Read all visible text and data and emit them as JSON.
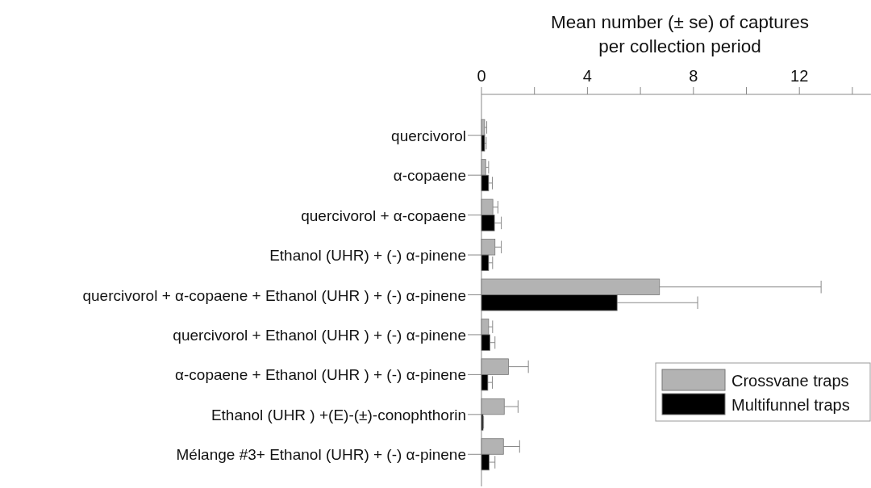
{
  "chart_data": {
    "type": "bar",
    "orientation": "horizontal",
    "xlabel": "Mean number (± se) of captures\nper collection period",
    "categories": [
      "quercivorol",
      "α-copaene",
      "quercivorol + α-copaene",
      "Ethanol (UHR) + (-) α-pinene",
      "quercivorol + α-copaene + Ethanol (UHR ) + (-) α-pinene",
      "quercivorol + Ethanol (UHR ) + (-) α-pinene",
      "α-copaene + Ethanol (UHR ) + (-) α-pinene",
      "Ethanol (UHR ) +(E)-(±)-conophthorin",
      "Mélange #3+ Ethanol (UHR) + (-) α-pinene"
    ],
    "series": [
      {
        "name": "Crossvane traps",
        "color": "#b3b3b3",
        "values": [
          0.12,
          0.16,
          0.43,
          0.51,
          6.72,
          0.27,
          1.02,
          0.86,
          0.83
        ],
        "errors": [
          [
            0.12,
            0.2
          ],
          [
            0.16,
            0.27
          ],
          [
            0.43,
            0.62
          ],
          [
            0.51,
            0.75
          ],
          [
            6.72,
            12.82
          ],
          [
            0.27,
            0.42
          ],
          [
            1.02,
            1.77
          ],
          [
            0.86,
            1.38
          ],
          [
            0.83,
            1.44
          ]
        ]
      },
      {
        "name": "Multifunnel traps",
        "color": "#000000",
        "values": [
          0.12,
          0.27,
          0.49,
          0.27,
          5.12,
          0.32,
          0.24,
          0.06,
          0.29
        ],
        "errors": [
          [
            0.12,
            0.18
          ],
          [
            0.27,
            0.41
          ],
          [
            0.49,
            0.75
          ],
          [
            0.27,
            0.42
          ],
          [
            5.12,
            8.16
          ],
          [
            0.32,
            0.51
          ],
          [
            0.24,
            0.41
          ],
          [
            0.06,
            0.08
          ],
          [
            0.29,
            0.51
          ]
        ]
      }
    ],
    "xlim": [
      0,
      14.7
    ],
    "xticks": [
      0,
      {
        "value": 2,
        "label": null
      },
      4,
      {
        "value": 6,
        "label": null
      },
      8,
      {
        "value": 10,
        "label": null
      },
      12,
      {
        "value": 14,
        "label": null
      }
    ],
    "legend": "right",
    "grid": false
  }
}
